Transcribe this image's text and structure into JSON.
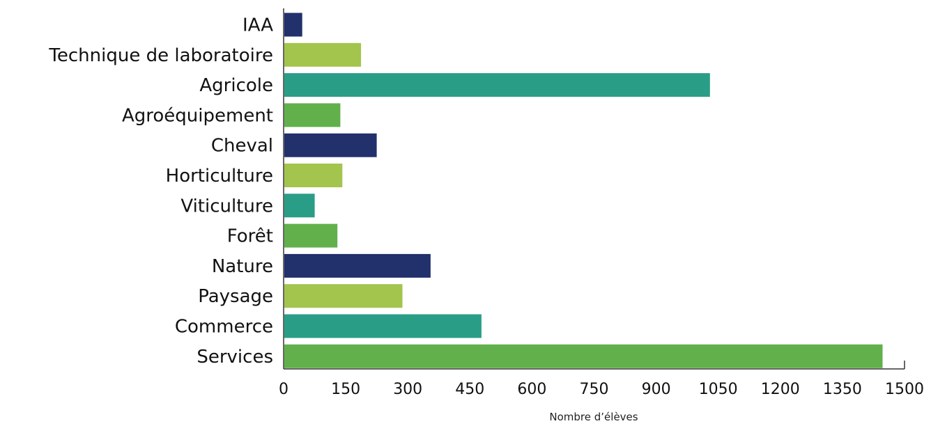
{
  "chart_data": {
    "type": "bar",
    "orientation": "horizontal",
    "title": "",
    "xlabel": "Nombre d’élèves",
    "ylabel": "",
    "xlim": [
      0,
      1500
    ],
    "x_ticks": [
      "0",
      "150",
      "300",
      "450",
      "600",
      "750",
      "900",
      "1050",
      "1200",
      "1350",
      "1500"
    ],
    "grid": false,
    "legend": "none",
    "categories": [
      "IAA",
      "Technique de laboratoire",
      "Agricole",
      "Agroéquipement",
      "Cheval",
      "Horticulture",
      "Viticulture",
      "Forêt",
      "Nature",
      "Paysage",
      "Commerce",
      "Services"
    ],
    "values": [
      45,
      187,
      1030,
      137,
      225,
      142,
      75,
      130,
      355,
      287,
      478,
      1447
    ],
    "colors": [
      "#22306b",
      "#a3c44d",
      "#2a9d87",
      "#62b04b",
      "#22306b",
      "#a3c44d",
      "#2a9d87",
      "#62b04b",
      "#22306b",
      "#a3c44d",
      "#2a9d87",
      "#62b04b"
    ],
    "axis_color": "#333333"
  }
}
